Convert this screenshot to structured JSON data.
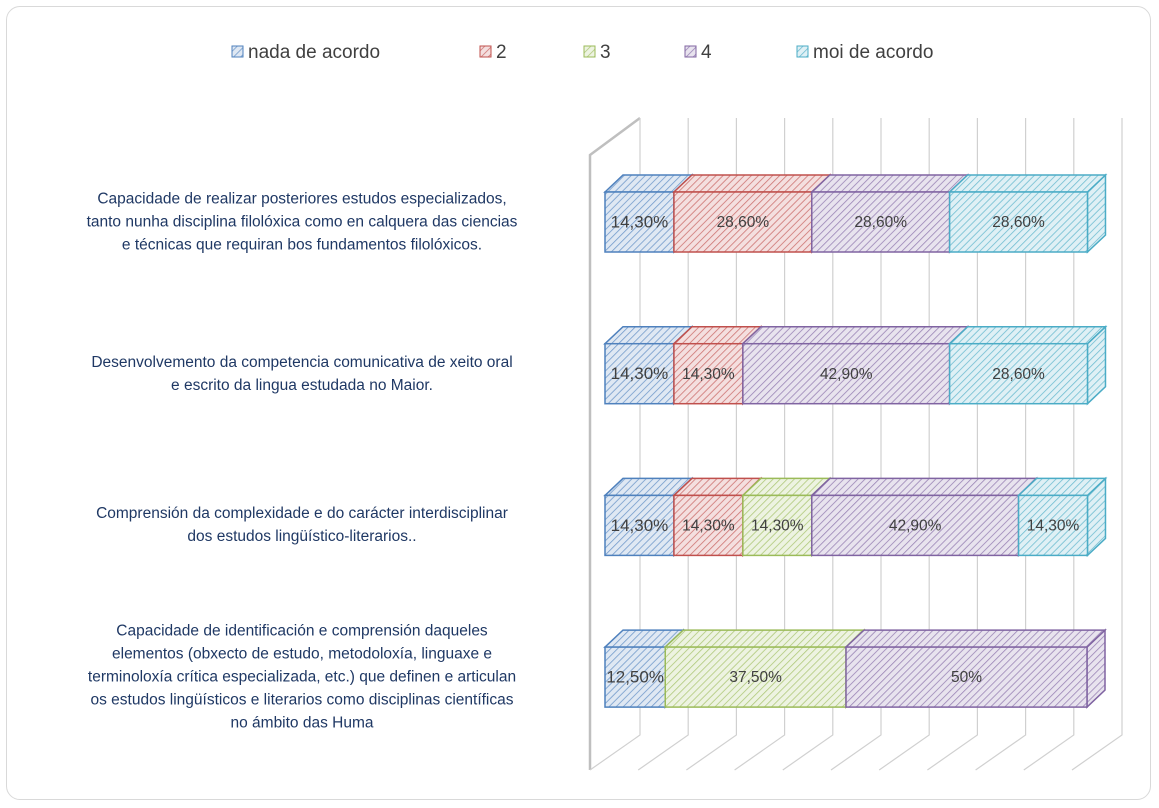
{
  "chart_data": {
    "type": "bar3d_stacked_horizontal",
    "categories": [
      "Capacidade de realizar posteriores estudos especializados,\ntanto nunha disciplina filolóxica como en calquera das ciencias\ne técnicas que requiran bos fundamentos filolóxicos.",
      "Desenvolvemento da competencia comunicativa de xeito oral\ne escrito da lingua estudada no Maior.",
      "Comprensión da complexidade e do carácter interdisciplinar\ndos estudos lingüístico-literarios..",
      "Capacidade de identificación e comprensión daqueles\nelementos (obxecto de estudo, metodoloxía, linguaxe e\nterminoloxía crítica especializada, etc.) que definen e articulan\nos estudos lingüísticos e literarios como disciplinas científicas\nno ámbito das Huma"
    ],
    "series": [
      {
        "name": "nada de acordo",
        "color": "#4f81bd",
        "values": [
          14.3,
          14.3,
          14.3,
          12.5
        ],
        "value_labels": [
          "14,30%",
          "14,30%",
          "14,30%",
          "12,50%"
        ]
      },
      {
        "name": "2",
        "color": "#c0504d",
        "values": [
          28.6,
          14.3,
          14.3,
          null
        ],
        "value_labels": [
          "28,60%",
          "14,30%",
          "14,30%",
          null
        ]
      },
      {
        "name": "3",
        "color": "#9bbb59",
        "values": [
          null,
          null,
          14.3,
          37.5
        ],
        "value_labels": [
          null,
          null,
          "14,30%",
          "37,50%"
        ]
      },
      {
        "name": "4",
        "color": "#8064a2",
        "values": [
          28.6,
          42.9,
          42.9,
          50
        ],
        "value_labels": [
          "28,60%",
          "42,90%",
          "42,90%",
          "50%"
        ]
      },
      {
        "name": "moi de acordo",
        "color": "#4bacc6",
        "values": [
          28.6,
          28.6,
          14.3,
          null
        ],
        "value_labels": [
          "28,60%",
          "28,60%",
          "14,30%",
          null
        ]
      }
    ],
    "xlim": [
      0,
      100
    ],
    "xticks": [
      0,
      10,
      20,
      30,
      40,
      50,
      60,
      70,
      80,
      90,
      100
    ],
    "grid": true,
    "legend": "top"
  }
}
